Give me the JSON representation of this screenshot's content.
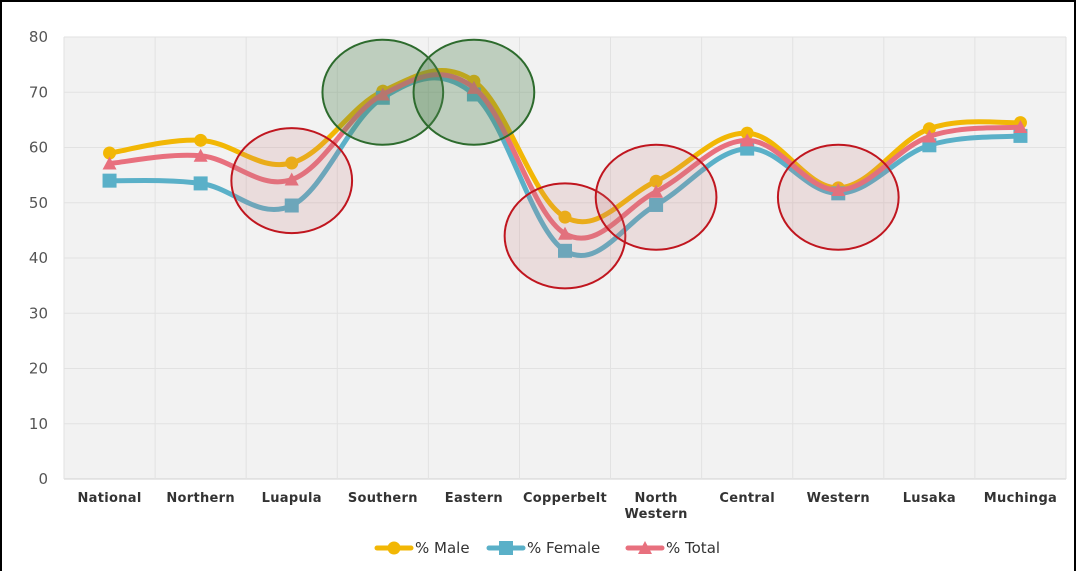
{
  "chart_data": {
    "type": "line",
    "title": "",
    "xlabel": "",
    "ylabel": "",
    "ylim": [
      0,
      80
    ],
    "yticks": [
      0,
      10,
      20,
      30,
      40,
      50,
      60,
      70,
      80
    ],
    "grid": true,
    "legend_position": "bottom",
    "categories": [
      [
        "National"
      ],
      [
        "Northern"
      ],
      [
        "Luapula"
      ],
      [
        "Southern"
      ],
      [
        "Eastern"
      ],
      [
        "Copperbelt"
      ],
      [
        "North",
        "Western"
      ],
      [
        "Central"
      ],
      [
        "Western"
      ],
      [
        "Lusaka"
      ],
      [
        "Muchinga"
      ]
    ],
    "series": [
      {
        "name": "% Male",
        "color": "#f2b705",
        "marker": "circle",
        "values": [
          59,
          61.3,
          57.2,
          70.2,
          72,
          47.4,
          53.9,
          62.6,
          52.7,
          63.4,
          64.5
        ]
      },
      {
        "name": "% Female",
        "color": "#5ab0c8",
        "marker": "square",
        "values": [
          54,
          53.5,
          49.5,
          69,
          69.6,
          41.3,
          49.6,
          59.8,
          51.7,
          60.4,
          62.1
        ]
      },
      {
        "name": "% Total",
        "color": "#e8707e",
        "marker": "triangle",
        "values": [
          57.1,
          58.5,
          54.2,
          69.6,
          70.8,
          44.4,
          52,
          61.3,
          52.3,
          62,
          63.7
        ]
      }
    ],
    "annotations": [
      {
        "type": "ellipse",
        "style": "red",
        "category_index": 2,
        "center_value": 54,
        "radius_value": 9.5
      },
      {
        "type": "ellipse",
        "style": "green",
        "category_index": 3,
        "center_value": 70,
        "radius_value": 9.5
      },
      {
        "type": "ellipse",
        "style": "green",
        "category_index": 4,
        "center_value": 70,
        "radius_value": 9.5
      },
      {
        "type": "ellipse",
        "style": "red",
        "category_index": 5,
        "center_value": 44,
        "radius_value": 9.5
      },
      {
        "type": "ellipse",
        "style": "red",
        "category_index": 6,
        "center_value": 51,
        "radius_value": 9.5
      },
      {
        "type": "ellipse",
        "style": "red",
        "category_index": 8,
        "center_value": 51,
        "radius_value": 9.5
      }
    ],
    "annotation_colors": {
      "red": {
        "fill": "rgba(200,120,120,0.18)",
        "stroke": "#c0161f"
      },
      "green": {
        "fill": "rgba(80,130,80,0.32)",
        "stroke": "#2d6b2d"
      }
    }
  }
}
